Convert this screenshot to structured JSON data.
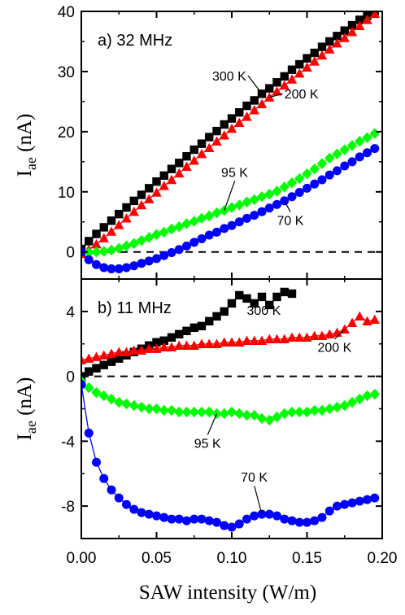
{
  "chart_data": [
    {
      "type": "line",
      "panel_label": "a) 32 MHz",
      "ylabel_main": "I",
      "ylabel_sub": "ae",
      "ylabel_unit": " (nA)",
      "xlim": [
        0,
        0.2
      ],
      "ylim": [
        -4.5,
        40
      ],
      "yticks": [
        0,
        10,
        20,
        30,
        40
      ],
      "zero_line": true,
      "series": [
        {
          "name": "300 K",
          "color": "#000000",
          "marker": "square",
          "x": [
            0.0,
            0.005,
            0.01,
            0.015,
            0.02,
            0.025,
            0.03,
            0.035,
            0.04,
            0.045,
            0.05,
            0.055,
            0.06,
            0.065,
            0.07,
            0.075,
            0.08,
            0.085,
            0.09,
            0.095,
            0.1,
            0.105,
            0.11,
            0.115,
            0.12,
            0.125,
            0.13,
            0.135,
            0.14,
            0.145,
            0.15,
            0.155,
            0.16,
            0.165,
            0.17,
            0.175,
            0.18,
            0.185,
            0.19,
            0.195
          ],
          "y": [
            0.5,
            1.8,
            3.0,
            4.1,
            5.2,
            6.3,
            7.4,
            8.5,
            9.5,
            10.6,
            11.7,
            12.7,
            13.8,
            14.8,
            15.9,
            17.0,
            18.0,
            19.1,
            20.1,
            21.2,
            22.2,
            23.2,
            24.3,
            25.2,
            26.3,
            27.2,
            28.2,
            29.2,
            30.3,
            31.2,
            32.2,
            33.1,
            34.1,
            35.0,
            35.9,
            36.8,
            37.7,
            38.6,
            39.3,
            40.0
          ]
        },
        {
          "name": "200 K",
          "color": "#ff0000",
          "marker": "triangle",
          "x": [
            0.0,
            0.005,
            0.01,
            0.015,
            0.02,
            0.025,
            0.03,
            0.035,
            0.04,
            0.045,
            0.05,
            0.055,
            0.06,
            0.065,
            0.07,
            0.075,
            0.08,
            0.085,
            0.09,
            0.095,
            0.1,
            0.105,
            0.11,
            0.115,
            0.12,
            0.125,
            0.13,
            0.135,
            0.14,
            0.145,
            0.15,
            0.155,
            0.16,
            0.165,
            0.17,
            0.175,
            0.18,
            0.185,
            0.19,
            0.195
          ],
          "y": [
            -0.3,
            0.4,
            1.3,
            2.3,
            3.4,
            4.5,
            5.6,
            6.7,
            7.8,
            8.8,
            9.9,
            11.0,
            12.0,
            13.1,
            14.2,
            15.2,
            16.3,
            17.3,
            18.4,
            19.4,
            20.5,
            21.5,
            22.5,
            23.6,
            24.6,
            25.7,
            26.7,
            27.7,
            28.7,
            29.7,
            30.7,
            31.7,
            32.7,
            33.7,
            34.7,
            35.6,
            36.6,
            37.6,
            38.6,
            39.6
          ]
        },
        {
          "name": "95 K",
          "color": "#00ff00",
          "marker": "diamond",
          "x": [
            0.0,
            0.005,
            0.01,
            0.015,
            0.02,
            0.025,
            0.03,
            0.035,
            0.04,
            0.045,
            0.05,
            0.055,
            0.06,
            0.065,
            0.07,
            0.075,
            0.08,
            0.085,
            0.09,
            0.095,
            0.1,
            0.105,
            0.11,
            0.115,
            0.12,
            0.125,
            0.13,
            0.135,
            0.14,
            0.145,
            0.15,
            0.155,
            0.16,
            0.165,
            0.17,
            0.175,
            0.18,
            0.185,
            0.19,
            0.195
          ],
          "y": [
            0.0,
            -0.1,
            0.0,
            0.1,
            0.3,
            0.6,
            1.0,
            1.4,
            1.9,
            2.4,
            2.9,
            3.3,
            3.8,
            4.2,
            4.7,
            5.1,
            5.6,
            6.0,
            6.5,
            6.9,
            7.4,
            7.8,
            8.3,
            8.7,
            9.2,
            9.6,
            10.1,
            10.8,
            11.5,
            12.2,
            13.0,
            13.8,
            14.7,
            15.6,
            16.3,
            17.0,
            17.7,
            18.4,
            19.0,
            19.7
          ]
        },
        {
          "name": "70 K",
          "color": "#0000ff",
          "marker": "circle",
          "x": [
            0.0,
            0.005,
            0.01,
            0.015,
            0.02,
            0.025,
            0.03,
            0.035,
            0.04,
            0.045,
            0.05,
            0.055,
            0.06,
            0.065,
            0.07,
            0.075,
            0.08,
            0.085,
            0.09,
            0.095,
            0.1,
            0.105,
            0.11,
            0.115,
            0.12,
            0.125,
            0.13,
            0.135,
            0.14,
            0.145,
            0.15,
            0.155,
            0.16,
            0.165,
            0.17,
            0.175,
            0.18,
            0.185,
            0.19,
            0.195
          ],
          "y": [
            0.0,
            -1.3,
            -2.1,
            -2.6,
            -2.8,
            -2.8,
            -2.6,
            -2.3,
            -1.9,
            -1.5,
            -1.1,
            -0.6,
            -0.1,
            0.4,
            1.0,
            1.6,
            2.2,
            2.8,
            3.3,
            3.9,
            4.4,
            5.0,
            5.6,
            6.1,
            6.7,
            7.3,
            7.9,
            8.5,
            9.2,
            9.9,
            10.6,
            11.3,
            12.0,
            12.8,
            13.5,
            14.3,
            15.0,
            15.8,
            16.5,
            17.2
          ]
        }
      ],
      "annotations": [
        {
          "text": "300 K",
          "series": 0,
          "at_x": 0.12,
          "label_x": 0.087,
          "label_y": 28.5
        },
        {
          "text": "200 K",
          "series": 1,
          "at_x": 0.125,
          "label_x": 0.135,
          "label_y": 25.5
        },
        {
          "text": "95 K",
          "series": 2,
          "at_x": 0.095,
          "label_x": 0.093,
          "label_y": 12.5
        },
        {
          "text": "70 K",
          "series": 3,
          "at_x": 0.135,
          "label_x": 0.13,
          "label_y": 4.5
        }
      ]
    },
    {
      "type": "line",
      "panel_label": "b) 11 MHz",
      "ylabel_main": "I",
      "ylabel_sub": "ae",
      "ylabel_unit": " (nA)",
      "xlabel": "SAW intensity (W/m)",
      "xlim": [
        0,
        0.2
      ],
      "xticks": [
        0.0,
        0.05,
        0.1,
        0.15,
        0.2
      ],
      "xtick_labels": [
        "0.00",
        "0.05",
        "0.10",
        "0.15",
        "0.20"
      ],
      "ylim": [
        -10,
        6
      ],
      "yticks": [
        -8,
        -4,
        0,
        4
      ],
      "zero_line": true,
      "series": [
        {
          "name": "300 K",
          "color": "#000000",
          "marker": "square",
          "x": [
            0.0,
            0.005,
            0.01,
            0.015,
            0.02,
            0.025,
            0.03,
            0.035,
            0.04,
            0.045,
            0.05,
            0.055,
            0.06,
            0.065,
            0.07,
            0.075,
            0.08,
            0.085,
            0.09,
            0.095,
            0.1,
            0.105,
            0.11,
            0.115,
            0.12,
            0.125,
            0.13,
            0.135,
            0.14
          ],
          "y": [
            0.0,
            0.3,
            0.5,
            0.7,
            0.9,
            1.1,
            1.3,
            1.5,
            1.7,
            1.9,
            2.1,
            2.2,
            2.4,
            2.6,
            2.8,
            3.0,
            3.1,
            3.4,
            3.7,
            4.0,
            4.5,
            5.0,
            4.8,
            4.5,
            4.9,
            4.4,
            4.9,
            5.2,
            5.1
          ]
        },
        {
          "name": "200 K",
          "color": "#ff0000",
          "marker": "triangle",
          "x": [
            0.0,
            0.005,
            0.01,
            0.015,
            0.02,
            0.025,
            0.03,
            0.035,
            0.04,
            0.045,
            0.05,
            0.055,
            0.06,
            0.065,
            0.07,
            0.075,
            0.08,
            0.085,
            0.09,
            0.095,
            0.1,
            0.105,
            0.11,
            0.115,
            0.12,
            0.125,
            0.13,
            0.135,
            0.14,
            0.145,
            0.15,
            0.155,
            0.16,
            0.165,
            0.17,
            0.175,
            0.18,
            0.185,
            0.19,
            0.195
          ],
          "y": [
            1.0,
            1.1,
            1.2,
            1.3,
            1.4,
            1.5,
            1.5,
            1.6,
            1.6,
            1.7,
            1.7,
            1.8,
            1.8,
            1.9,
            1.9,
            1.9,
            2.0,
            2.0,
            2.0,
            2.1,
            2.1,
            2.1,
            2.2,
            2.2,
            2.2,
            2.3,
            2.3,
            2.3,
            2.4,
            2.4,
            2.4,
            2.5,
            2.5,
            2.6,
            2.7,
            2.9,
            3.3,
            3.7,
            3.4,
            3.5
          ]
        },
        {
          "name": "95 K",
          "color": "#00ff00",
          "marker": "diamond",
          "x": [
            0.0,
            0.005,
            0.01,
            0.015,
            0.02,
            0.025,
            0.03,
            0.035,
            0.04,
            0.045,
            0.05,
            0.055,
            0.06,
            0.065,
            0.07,
            0.075,
            0.08,
            0.085,
            0.09,
            0.095,
            0.1,
            0.105,
            0.11,
            0.115,
            0.12,
            0.125,
            0.13,
            0.135,
            0.14,
            0.145,
            0.15,
            0.155,
            0.16,
            0.165,
            0.17,
            0.175,
            0.18,
            0.185,
            0.19,
            0.195
          ],
          "y": [
            -0.3,
            -0.7,
            -1.0,
            -1.2,
            -1.4,
            -1.6,
            -1.7,
            -1.8,
            -1.9,
            -2.0,
            -2.0,
            -2.1,
            -2.1,
            -2.2,
            -2.2,
            -2.2,
            -2.2,
            -2.2,
            -2.3,
            -2.3,
            -2.2,
            -2.3,
            -2.4,
            -2.4,
            -2.6,
            -2.7,
            -2.5,
            -2.3,
            -2.2,
            -2.2,
            -2.2,
            -2.1,
            -2.1,
            -2.0,
            -1.9,
            -1.8,
            -1.6,
            -1.4,
            -1.2,
            -1.1
          ]
        },
        {
          "name": "70 K",
          "color": "#0000ff",
          "marker": "circle",
          "x": [
            0.0,
            0.005,
            0.01,
            0.015,
            0.02,
            0.025,
            0.03,
            0.035,
            0.04,
            0.045,
            0.05,
            0.055,
            0.06,
            0.065,
            0.07,
            0.075,
            0.08,
            0.085,
            0.09,
            0.095,
            0.1,
            0.105,
            0.11,
            0.115,
            0.12,
            0.125,
            0.13,
            0.135,
            0.14,
            0.145,
            0.15,
            0.155,
            0.16,
            0.165,
            0.17,
            0.175,
            0.18,
            0.185,
            0.19,
            0.195
          ],
          "y": [
            -0.5,
            -3.5,
            -5.3,
            -6.3,
            -7.0,
            -7.5,
            -7.9,
            -8.2,
            -8.4,
            -8.5,
            -8.6,
            -8.7,
            -8.8,
            -8.8,
            -8.9,
            -8.8,
            -8.8,
            -8.9,
            -9.0,
            -9.2,
            -9.3,
            -9.1,
            -8.8,
            -8.6,
            -8.5,
            -8.5,
            -8.6,
            -8.8,
            -8.9,
            -9.0,
            -9.0,
            -8.9,
            -8.7,
            -8.3,
            -8.0,
            -7.9,
            -7.8,
            -7.7,
            -7.6,
            -7.5
          ]
        }
      ],
      "annotations": [
        {
          "text": "300 K",
          "series": 0,
          "at_x": 0.125,
          "label_x": 0.11,
          "label_y": 3.8
        },
        {
          "text": "200 K",
          "series": 1,
          "at_x": 0.175,
          "label_x": 0.157,
          "label_y": 1.5
        },
        {
          "text": "95 K",
          "series": 2,
          "at_x": 0.09,
          "label_x": 0.075,
          "label_y": -4.4
        },
        {
          "text": "70 K",
          "series": 3,
          "at_x": 0.12,
          "label_x": 0.106,
          "label_y": -6.5
        }
      ]
    }
  ]
}
